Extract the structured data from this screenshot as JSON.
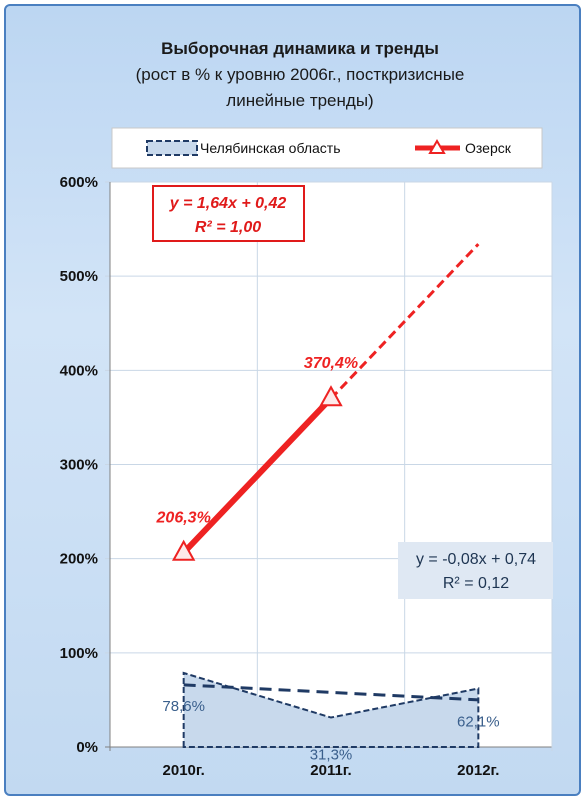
{
  "chart_data": {
    "type": "line",
    "title": "Выборочная динамика и тренды",
    "subtitle": [
      "(рост   в % к уровню 2006г., посткризисные",
      "линейные тренды)"
    ],
    "categories": [
      "2010г.",
      "2011г.",
      "2012г."
    ],
    "y_ticks": [
      "0%",
      "100%",
      "200%",
      "300%",
      "400%",
      "500%",
      "600%"
    ],
    "ylim": [
      0,
      6
    ],
    "grid": true,
    "legend_position": "top",
    "series": [
      {
        "name": "Челябинская область",
        "style": "dashed-area",
        "color": "#1f3a64",
        "fill": "#c8d9ec",
        "values": [
          0.786,
          0.313,
          0.621
        ],
        "labels": [
          "78,6%",
          "31,3%",
          "62,1%"
        ],
        "trend": {
          "slope": -0.08,
          "intercept": 0.74,
          "equation": "y = -0,08x + 0,74",
          "r2": "R² = 0,12"
        }
      },
      {
        "name": "Озерск",
        "style": "line-triangle",
        "color": "#ee2222",
        "values": [
          2.063,
          3.704,
          null
        ],
        "labels": [
          "206,3%",
          "370,4%",
          ""
        ],
        "trend": {
          "slope": 1.64,
          "intercept": 0.42,
          "equation": "y = 1,64x + 0,42",
          "r2": "R² = 1,00"
        }
      }
    ]
  }
}
